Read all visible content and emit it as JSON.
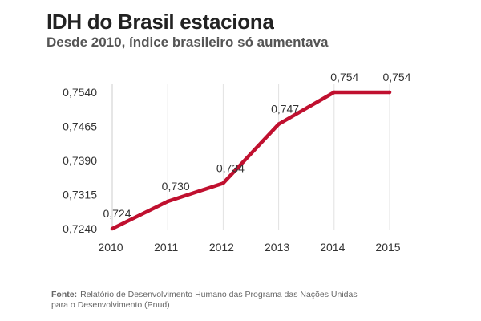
{
  "chart_data": {
    "type": "line",
    "title": "IDH do Brasil estaciona",
    "subtitle": "Desde 2010, índice brasileiro só aumentava",
    "xlabel": "",
    "ylabel": "",
    "categories": [
      "2010",
      "2011",
      "2012",
      "2013",
      "2014",
      "2015"
    ],
    "series": [
      {
        "name": "IDH",
        "values": [
          0.724,
          0.73,
          0.734,
          0.747,
          0.754,
          0.754
        ],
        "data_labels": [
          "0,724",
          "0,730",
          "0,734",
          "0,747",
          "0,754",
          "0,754"
        ]
      }
    ],
    "y_ticks": [
      0.724,
      0.7315,
      0.739,
      0.7465,
      0.754
    ],
    "y_tick_labels": [
      "0,7240",
      "0,7315",
      "0,7390",
      "0,7465",
      "0,7540"
    ],
    "ylim": [
      0.724,
      0.754
    ],
    "grid": "vertical",
    "line_color": "#c0102f",
    "grid_color": "#e2e2e2",
    "text_color": "#333333",
    "legend": "none"
  },
  "source": {
    "label": "Fonte:",
    "line1": "Relatório de Desenvolvimento Humano das Programa das Nações Unidas",
    "line2": "para o Desenvolvimento (Pnud)"
  }
}
